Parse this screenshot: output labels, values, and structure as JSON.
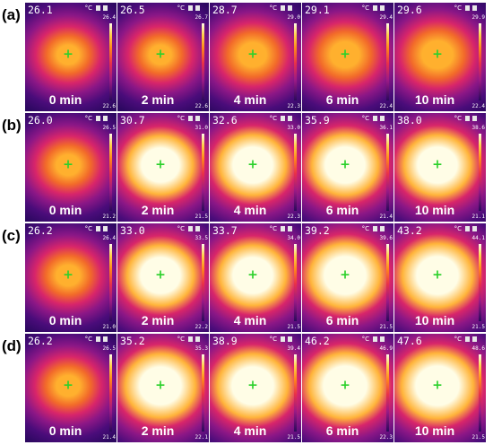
{
  "figure": {
    "rows": [
      {
        "label": "(a)",
        "panels": [
          {
            "reading": "26.1",
            "scale_max": "26.4",
            "scale_min": "22.6",
            "time": "0 min",
            "intensity": 0.28
          },
          {
            "reading": "26.5",
            "scale_max": "26.7",
            "scale_min": "22.6",
            "time": "2 min",
            "intensity": 0.26
          },
          {
            "reading": "28.7",
            "scale_max": "29.0",
            "scale_min": "22.3",
            "time": "4 min",
            "intensity": 0.42
          },
          {
            "reading": "29.1",
            "scale_max": "29.4",
            "scale_min": "22.4",
            "time": "6 min",
            "intensity": 0.5
          },
          {
            "reading": "29.6",
            "scale_max": "29.9",
            "scale_min": "22.4",
            "time": "10 min",
            "intensity": 0.55
          }
        ]
      },
      {
        "label": "(b)",
        "panels": [
          {
            "reading": "26.0",
            "scale_max": "26.5",
            "scale_min": "21.2",
            "time": "0 min",
            "intensity": 0.3
          },
          {
            "reading": "30.7",
            "scale_max": "31.0",
            "scale_min": "21.5",
            "time": "2 min",
            "intensity": 0.82
          },
          {
            "reading": "32.6",
            "scale_max": "33.0",
            "scale_min": "22.3",
            "time": "4 min",
            "intensity": 0.85
          },
          {
            "reading": "35.9",
            "scale_max": "36.1",
            "scale_min": "21.4",
            "time": "6 min",
            "intensity": 0.88
          },
          {
            "reading": "38.0",
            "scale_max": "38.6",
            "scale_min": "21.1",
            "time": "10 min",
            "intensity": 0.9
          }
        ]
      },
      {
        "label": "(c)",
        "panels": [
          {
            "reading": "26.2",
            "scale_max": "26.4",
            "scale_min": "21.0",
            "time": "0 min",
            "intensity": 0.3
          },
          {
            "reading": "33.0",
            "scale_max": "33.5",
            "scale_min": "22.2",
            "time": "2 min",
            "intensity": 0.9
          },
          {
            "reading": "33.7",
            "scale_max": "34.0",
            "scale_min": "21.5",
            "time": "4 min",
            "intensity": 0.9
          },
          {
            "reading": "39.2",
            "scale_max": "39.6",
            "scale_min": "21.5",
            "time": "6 min",
            "intensity": 0.94
          },
          {
            "reading": "43.2",
            "scale_max": "44.1",
            "scale_min": "21.5",
            "time": "10 min",
            "intensity": 0.96
          }
        ]
      },
      {
        "label": "(d)",
        "panels": [
          {
            "reading": "26.2",
            "scale_max": "26.5",
            "scale_min": "21.4",
            "time": "0 min",
            "intensity": 0.34
          },
          {
            "reading": "35.2",
            "scale_max": "35.3",
            "scale_min": "22.1",
            "time": "2 min",
            "intensity": 0.92
          },
          {
            "reading": "38.9",
            "scale_max": "39.4",
            "scale_min": "21.5",
            "time": "4 min",
            "intensity": 0.94
          },
          {
            "reading": "46.2",
            "scale_max": "46.9",
            "scale_min": "22.3",
            "time": "6 min",
            "intensity": 0.97
          },
          {
            "reading": "47.6",
            "scale_max": "48.6",
            "scale_min": "21.5",
            "time": "10 min",
            "intensity": 0.98
          }
        ]
      }
    ],
    "unit": "°C",
    "crosshair_glyph": "+",
    "icons": [
      "battery-icon",
      "sd-card-icon"
    ]
  }
}
